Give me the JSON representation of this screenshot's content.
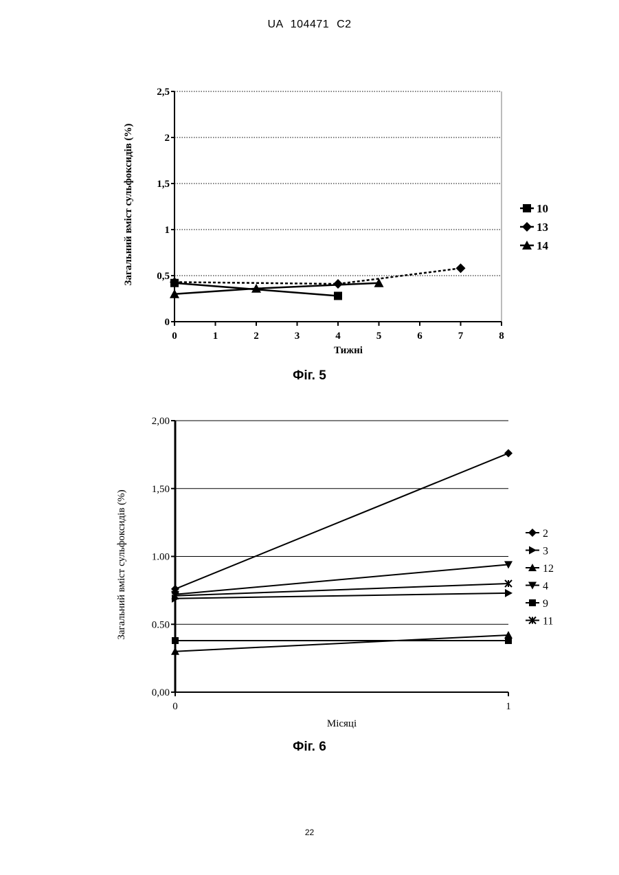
{
  "header": {
    "text": "UA   104471   C2"
  },
  "page_number": "22",
  "figures": [
    {
      "caption": "Фіг. 5"
    },
    {
      "caption": "Фіг. 6"
    }
  ],
  "chart_data": [
    {
      "type": "line",
      "title": "",
      "xlabel": "Тижні",
      "ylabel": "Загальний вміст сульфоксидів (%)",
      "xlim": [
        0,
        8
      ],
      "ylim": [
        0,
        2.5
      ],
      "xticks": [
        "0",
        "1",
        "2",
        "3",
        "4",
        "5",
        "6",
        "7",
        "8"
      ],
      "yticks": [
        "0",
        "0,5",
        "1",
        "1,5",
        "2",
        "2,5"
      ],
      "grid": "horizontal dotted",
      "legend_position": "right",
      "series": [
        {
          "name": "10",
          "marker": "square",
          "line": "solid",
          "points": [
            [
              0,
              0.42
            ],
            [
              4,
              0.28
            ]
          ]
        },
        {
          "name": "13",
          "marker": "diamond",
          "line": "dashed",
          "points": [
            [
              0,
              0.43
            ],
            [
              4,
              0.41
            ],
            [
              7,
              0.58
            ]
          ]
        },
        {
          "name": "14",
          "marker": "triangle",
          "line": "solid",
          "points": [
            [
              0,
              0.3
            ],
            [
              2,
              0.36
            ],
            [
              5,
              0.42
            ]
          ]
        }
      ]
    },
    {
      "type": "line",
      "title": "",
      "xlabel": "Місяці",
      "ylabel": "Загальний вміст сульфоксидів (%)",
      "xlim": [
        0,
        1
      ],
      "ylim": [
        0,
        2
      ],
      "xticks": [
        "0",
        "1"
      ],
      "yticks": [
        "0,00",
        "0.50",
        "1.00",
        "1,50",
        "2,00"
      ],
      "grid": "horizontal solid",
      "legend_position": "right",
      "series": [
        {
          "name": "2",
          "marker": "diamond",
          "points": [
            [
              0,
              0.76
            ],
            [
              1,
              1.76
            ]
          ]
        },
        {
          "name": "3",
          "marker": "triangle-right",
          "points": [
            [
              0,
              0.69
            ],
            [
              1,
              0.73
            ]
          ]
        },
        {
          "name": "12",
          "marker": "triangle",
          "points": [
            [
              0,
              0.3
            ],
            [
              1,
              0.42
            ]
          ]
        },
        {
          "name": "4",
          "marker": "triangle-down",
          "points": [
            [
              0,
              0.72
            ],
            [
              1,
              0.94
            ]
          ]
        },
        {
          "name": "9",
          "marker": "square",
          "points": [
            [
              0,
              0.38
            ],
            [
              1,
              0.38
            ]
          ]
        },
        {
          "name": "11",
          "marker": "cross",
          "points": [
            [
              0,
              0.71
            ],
            [
              1,
              0.8
            ]
          ]
        }
      ]
    }
  ]
}
